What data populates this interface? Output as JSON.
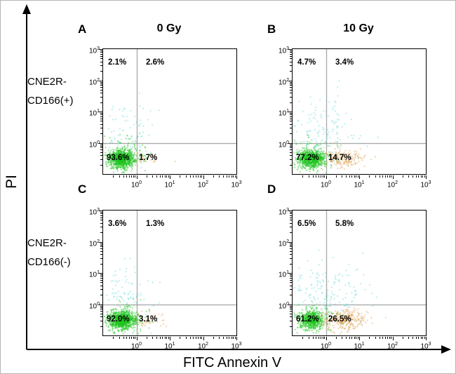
{
  "figure": {
    "y_axis_label": "PI",
    "x_axis_label": "FITC Annexin V",
    "rows": [
      {
        "line1": "CNE2R-",
        "line2": "CD166(+)"
      },
      {
        "line1": "CNE2R-",
        "line2": "CD166(-)"
      }
    ],
    "column_headers": [
      "0 Gy",
      "10 Gy"
    ],
    "dot_colors": {
      "live": "#1fc41f",
      "necrotic": "#68d8d8",
      "apoptotic": "#e0a050"
    }
  },
  "chart_data": [
    {
      "type": "scatter",
      "panel": "A",
      "title": "0 Gy",
      "row_label": "CNE2R-CD166(+)",
      "x_axis": "FITC Annexin V (log scale)",
      "y_axis": "PI (log scale)",
      "axis": {
        "min": -1,
        "max": 3,
        "tick_exponents": [
          0,
          1,
          2,
          3
        ]
      },
      "quadrant_split": 0,
      "quadrants": {
        "UL": "2.1%",
        "UR": "2.6%",
        "LL": "93.6%",
        "LR": "1.7%"
      },
      "seed": 101,
      "populations": [
        {
          "name": "necrotic-debris",
          "color": "#68d8d8",
          "count": 85,
          "cx": -0.3,
          "cy": 0.35,
          "sx": 0.42,
          "sy": 0.5
        },
        {
          "name": "early-apoptotic",
          "color": "#e0a050",
          "count": 32,
          "cx": 0.3,
          "cy": -0.5,
          "sx": 0.26,
          "sy": 0.15
        },
        {
          "name": "live-halo",
          "color": "#1fc41f",
          "count": 150,
          "cx": -0.42,
          "cy": -0.45,
          "sx": 0.38,
          "sy": 0.3
        },
        {
          "name": "live-core",
          "color": "#1fc41f",
          "count": 900,
          "cx": -0.45,
          "cy": -0.5,
          "sx": 0.18,
          "sy": 0.14
        }
      ]
    },
    {
      "type": "scatter",
      "panel": "B",
      "title": "10 Gy",
      "row_label": "CNE2R-CD166(+)",
      "x_axis": "FITC Annexin V (log scale)",
      "y_axis": "PI (log scale)",
      "axis": {
        "min": -1,
        "max": 3,
        "tick_exponents": [
          0,
          1,
          2,
          3
        ]
      },
      "quadrant_split": 0,
      "quadrants": {
        "UL": "4.7%",
        "UR": "3.4%",
        "LL": "77.2%",
        "LR": "14.7%"
      },
      "seed": 202,
      "populations": [
        {
          "name": "necrotic-debris",
          "color": "#68d8d8",
          "count": 150,
          "cx": -0.1,
          "cy": 0.4,
          "sx": 0.55,
          "sy": 0.55
        },
        {
          "name": "early-apoptotic",
          "color": "#e0a050",
          "count": 190,
          "cx": 0.45,
          "cy": -0.5,
          "sx": 0.33,
          "sy": 0.16
        },
        {
          "name": "live-halo",
          "color": "#1fc41f",
          "count": 130,
          "cx": -0.42,
          "cy": -0.45,
          "sx": 0.38,
          "sy": 0.3
        },
        {
          "name": "live-core",
          "color": "#1fc41f",
          "count": 760,
          "cx": -0.45,
          "cy": -0.5,
          "sx": 0.18,
          "sy": 0.14
        }
      ]
    },
    {
      "type": "scatter",
      "panel": "C",
      "row_label": "CNE2R-CD166(-)",
      "x_axis": "FITC Annexin V (log scale)",
      "y_axis": "PI (log scale)",
      "axis": {
        "min": -1,
        "max": 3,
        "tick_exponents": [
          0,
          1,
          2,
          3
        ]
      },
      "quadrant_split": 0,
      "quadrants": {
        "UL": "3.6%",
        "UR": "1.3%",
        "LL": "92.0%",
        "LR": "3.1%"
      },
      "seed": 303,
      "populations": [
        {
          "name": "necrotic-debris",
          "color": "#68d8d8",
          "count": 95,
          "cx": -0.3,
          "cy": 0.35,
          "sx": 0.42,
          "sy": 0.5
        },
        {
          "name": "early-apoptotic",
          "color": "#e0a050",
          "count": 55,
          "cx": 0.32,
          "cy": -0.5,
          "sx": 0.28,
          "sy": 0.15
        },
        {
          "name": "live-halo",
          "color": "#1fc41f",
          "count": 150,
          "cx": -0.42,
          "cy": -0.45,
          "sx": 0.38,
          "sy": 0.3
        },
        {
          "name": "live-core",
          "color": "#1fc41f",
          "count": 880,
          "cx": -0.45,
          "cy": -0.5,
          "sx": 0.18,
          "sy": 0.14
        }
      ]
    },
    {
      "type": "scatter",
      "panel": "D",
      "row_label": "CNE2R-CD166(-)",
      "x_axis": "FITC Annexin V (log scale)",
      "y_axis": "PI (log scale)",
      "axis": {
        "min": -1,
        "max": 3,
        "tick_exponents": [
          0,
          1,
          2,
          3
        ]
      },
      "quadrant_split": 0,
      "quadrants": {
        "UL": "6.5%",
        "UR": "5.8%",
        "LL": "61.2%",
        "LR": "26.5%"
      },
      "seed": 404,
      "populations": [
        {
          "name": "necrotic-debris",
          "color": "#68d8d8",
          "count": 185,
          "cx": 0.0,
          "cy": 0.4,
          "sx": 0.6,
          "sy": 0.55
        },
        {
          "name": "early-apoptotic",
          "color": "#e0a050",
          "count": 300,
          "cx": 0.5,
          "cy": -0.48,
          "sx": 0.36,
          "sy": 0.17
        },
        {
          "name": "live-halo",
          "color": "#1fc41f",
          "count": 110,
          "cx": -0.42,
          "cy": -0.45,
          "sx": 0.38,
          "sy": 0.3
        },
        {
          "name": "live-core",
          "color": "#1fc41f",
          "count": 620,
          "cx": -0.45,
          "cy": -0.5,
          "sx": 0.18,
          "sy": 0.14
        }
      ]
    }
  ]
}
